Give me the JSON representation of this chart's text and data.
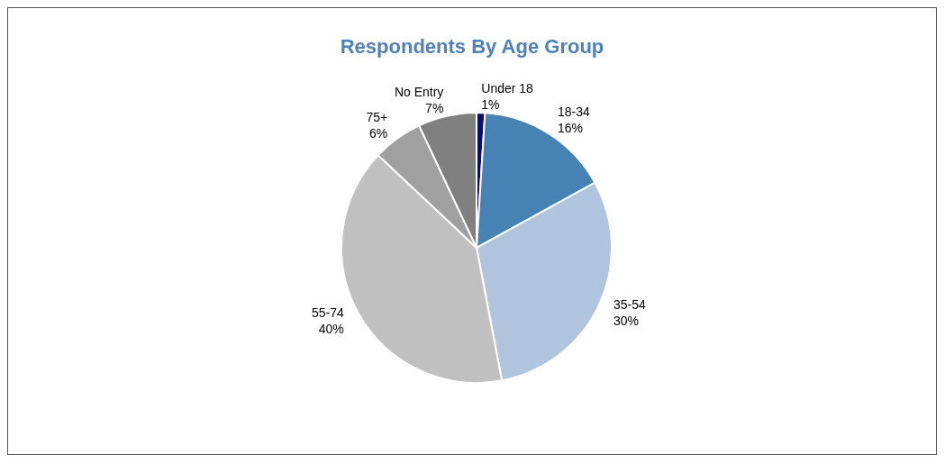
{
  "chart_data": {
    "type": "pie",
    "title": "Respondents By Age Group",
    "categories": [
      "Under 18",
      "18-34",
      "35-54",
      "55-74",
      "75+",
      "No Entry"
    ],
    "values": [
      1,
      16,
      30,
      40,
      6,
      7
    ],
    "value_labels": [
      "1%",
      "16%",
      "30%",
      "40%",
      "6%",
      "7%"
    ],
    "colors": [
      "#0c0c6e",
      "#4682b4",
      "#b0c4de",
      "#c0c0c0",
      "#a0a0a0",
      "#808080"
    ],
    "legend": false
  }
}
